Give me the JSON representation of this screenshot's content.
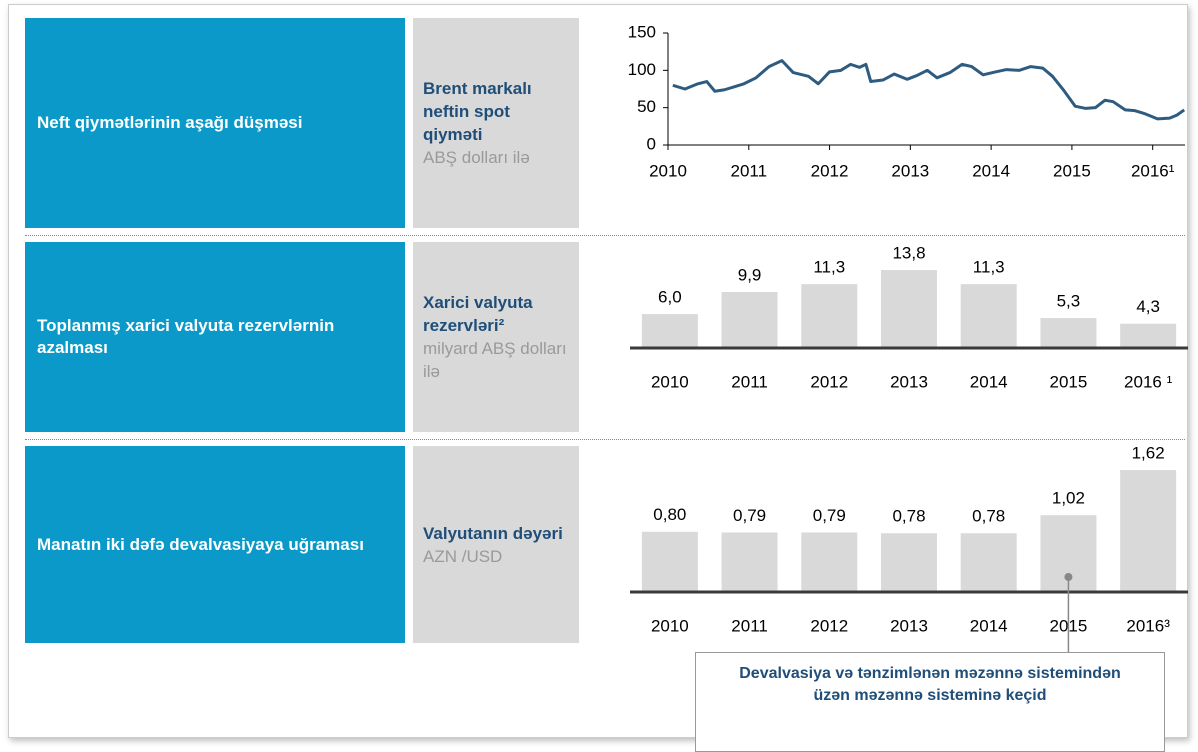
{
  "rows": [
    {
      "title": "Neft qiymətlərinin aşağı düşməsi",
      "description": {
        "title": "Brent markalı neftin spot qiyməti",
        "unit": "ABŞ dolları ilə"
      }
    },
    {
      "title": "Toplanmış xarici valyuta rezervlərnin azalması",
      "description": {
        "title": "Xarici valyuta rezervləri²",
        "unit": "milyard ABŞ dolları ilə"
      }
    },
    {
      "title": "Manatın iki dəfə devalvasiyaya uğraması",
      "description": {
        "title": "Valyutanın dəyəri",
        "unit": "AZN /USD"
      }
    }
  ],
  "chart_data": [
    {
      "type": "line",
      "color": "#2e5b80",
      "x": [
        2010.06,
        2010.21,
        2010.37,
        2010.48,
        2010.58,
        2010.7,
        2010.82,
        2010.94,
        2011.09,
        2011.25,
        2011.41,
        2011.55,
        2011.74,
        2011.86,
        2012.0,
        2012.14,
        2012.26,
        2012.37,
        2012.45,
        2012.51,
        2012.66,
        2012.8,
        2012.96,
        2013.08,
        2013.21,
        2013.33,
        2013.49,
        2013.64,
        2013.76,
        2013.9,
        2014.06,
        2014.19,
        2014.35,
        2014.49,
        2014.64,
        2014.76,
        2014.9,
        2015.04,
        2015.17,
        2015.29,
        2015.41,
        2015.51,
        2015.66,
        2015.78,
        2015.9,
        2016.06,
        2016.21,
        2016.3,
        2016.39
      ],
      "values": [
        80,
        75,
        82,
        85,
        72,
        74,
        78,
        82,
        90,
        105,
        113,
        97,
        92,
        82,
        98,
        100,
        108,
        104,
        108,
        85,
        87,
        95,
        88,
        93,
        100,
        90,
        97,
        108,
        105,
        94,
        98,
        101,
        100,
        105,
        103,
        92,
        73,
        52,
        49,
        50,
        60,
        58,
        47,
        46,
        42,
        35,
        36,
        40,
        47
      ],
      "xlim": [
        2010,
        2016.4
      ],
      "xticks": [
        2010,
        2011,
        2012,
        2013,
        2014,
        2015,
        {
          "value": 2016,
          "label": "2016¹"
        }
      ],
      "ylim": [
        0,
        150
      ],
      "yticks": [
        0,
        50,
        100,
        150
      ]
    },
    {
      "type": "bar",
      "color": "#d9d9d9",
      "categories": [
        "2010",
        "2011",
        "2012",
        "2013",
        "2014",
        "2015",
        "2016 ¹"
      ],
      "values": [
        6.0,
        9.9,
        11.3,
        13.8,
        11.3,
        5.3,
        4.3
      ],
      "value_labels": [
        "6,0",
        "9,9",
        "11,3",
        "13,8",
        "11,3",
        "5,3",
        "4,3"
      ]
    },
    {
      "type": "bar",
      "color": "#d9d9d9",
      "categories": [
        "2010",
        "2011",
        "2012",
        "2013",
        "2014",
        "2015",
        "2016³"
      ],
      "values": [
        0.8,
        0.79,
        0.79,
        0.78,
        0.78,
        1.02,
        1.62
      ],
      "value_labels": [
        "0,80",
        "0,79",
        "0,79",
        "0,78",
        "0,78",
        "1,02",
        "1,62"
      ],
      "annotation": "Devalvasiya və tənzimlənən məzənnə sistemindən üzən məzənnə sisteminə keçid"
    }
  ]
}
